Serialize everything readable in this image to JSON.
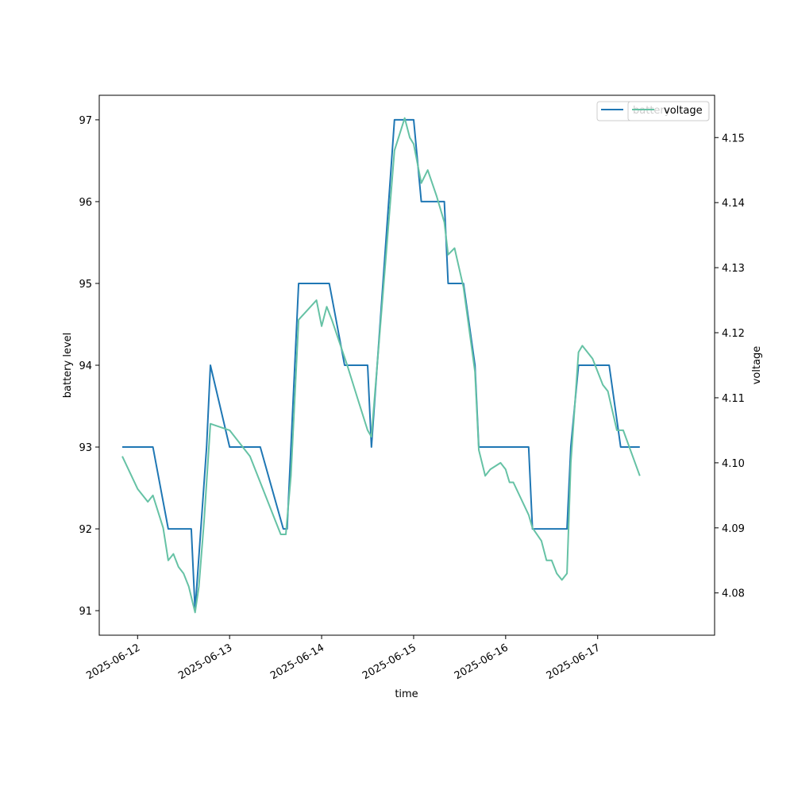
{
  "chart_data": {
    "type": "line",
    "xlabel": "time",
    "ylabel": "battery level",
    "y2label": "voltage",
    "x_tick_labels": [
      "2025-06-12",
      "2025-06-13",
      "2025-06-14",
      "2025-06-15",
      "2025-06-16",
      "2025-06-17"
    ],
    "y_tick_labels": [
      "91",
      "92",
      "93",
      "94",
      "95",
      "96",
      "97"
    ],
    "y2_tick_labels": [
      "4.08",
      "4.09",
      "4.10",
      "4.11",
      "4.12",
      "4.13",
      "4.14",
      "4.15"
    ],
    "xlim": [
      "2025-06-11 14:00",
      "2025-06-18 06:30"
    ],
    "ylim": [
      90.7,
      97.3
    ],
    "y2lim": [
      4.0735,
      4.1565
    ],
    "legend": [
      "battery",
      "voltage"
    ],
    "legend_position": "top-right",
    "grid": false,
    "series": [
      {
        "name": "battery",
        "axis": "left",
        "color": "#1f77b4",
        "points": [
          [
            "2025-06-11 20:00",
            93
          ],
          [
            "2025-06-12 04:00",
            93
          ],
          [
            "2025-06-12 08:00",
            92
          ],
          [
            "2025-06-12 14:00",
            92
          ],
          [
            "2025-06-12 15:00",
            91
          ],
          [
            "2025-06-12 18:00",
            93
          ],
          [
            "2025-06-12 19:00",
            94
          ],
          [
            "2025-06-13 00:00",
            93
          ],
          [
            "2025-06-13 08:00",
            93
          ],
          [
            "2025-06-13 14:00",
            92
          ],
          [
            "2025-06-13 15:00",
            92
          ],
          [
            "2025-06-13 18:00",
            95
          ],
          [
            "2025-06-14 02:00",
            95
          ],
          [
            "2025-06-14 06:00",
            94
          ],
          [
            "2025-06-14 12:00",
            94
          ],
          [
            "2025-06-14 13:00",
            93
          ],
          [
            "2025-06-14 19:00",
            97
          ],
          [
            "2025-06-15 00:00",
            97
          ],
          [
            "2025-06-15 02:00",
            96
          ],
          [
            "2025-06-15 08:00",
            96
          ],
          [
            "2025-06-15 09:00",
            95
          ],
          [
            "2025-06-15 13:00",
            95
          ],
          [
            "2025-06-15 16:00",
            94
          ],
          [
            "2025-06-15 17:00",
            93
          ],
          [
            "2025-06-16 06:00",
            93
          ],
          [
            "2025-06-16 07:00",
            92
          ],
          [
            "2025-06-16 16:00",
            92
          ],
          [
            "2025-06-16 17:00",
            93
          ],
          [
            "2025-06-16 19:00",
            94
          ],
          [
            "2025-06-17 03:00",
            94
          ],
          [
            "2025-06-17 06:00",
            93
          ],
          [
            "2025-06-17 11:00",
            93
          ]
        ]
      },
      {
        "name": "voltage",
        "axis": "right",
        "color": "#66c2a5",
        "points": [
          [
            "2025-06-11 20:00",
            4.101
          ],
          [
            "2025-06-12 00:00",
            4.096
          ],
          [
            "2025-06-12 02:40",
            4.094
          ],
          [
            "2025-06-12 04:00",
            4.095
          ],
          [
            "2025-06-12 06:40",
            4.09
          ],
          [
            "2025-06-12 08:00",
            4.085
          ],
          [
            "2025-06-12 09:20",
            4.086
          ],
          [
            "2025-06-12 10:40",
            4.084
          ],
          [
            "2025-06-12 12:00",
            4.083
          ],
          [
            "2025-06-12 13:20",
            4.081
          ],
          [
            "2025-06-12 15:00",
            4.077
          ],
          [
            "2025-06-12 16:00",
            4.081
          ],
          [
            "2025-06-12 17:20",
            4.091
          ],
          [
            "2025-06-12 19:00",
            4.106
          ],
          [
            "2025-06-13 00:00",
            4.105
          ],
          [
            "2025-06-13 05:20",
            4.101
          ],
          [
            "2025-06-13 08:00",
            4.097
          ],
          [
            "2025-06-13 12:00",
            4.091
          ],
          [
            "2025-06-13 13:20",
            4.089
          ],
          [
            "2025-06-13 14:40",
            4.089
          ],
          [
            "2025-06-13 16:00",
            4.098
          ],
          [
            "2025-06-13 18:00",
            4.122
          ],
          [
            "2025-06-13 22:40",
            4.125
          ],
          [
            "2025-06-14 00:00",
            4.121
          ],
          [
            "2025-06-14 01:20",
            4.124
          ],
          [
            "2025-06-14 02:40",
            4.122
          ],
          [
            "2025-06-14 06:40",
            4.115
          ],
          [
            "2025-06-14 09:20",
            4.11
          ],
          [
            "2025-06-14 12:00",
            4.105
          ],
          [
            "2025-06-14 13:00",
            4.104
          ],
          [
            "2025-06-14 19:00",
            4.148
          ],
          [
            "2025-06-14 21:40",
            4.153
          ],
          [
            "2025-06-14 23:00",
            4.15
          ],
          [
            "2025-06-15 00:00",
            4.149
          ],
          [
            "2025-06-15 02:00",
            4.143
          ],
          [
            "2025-06-15 03:40",
            4.145
          ],
          [
            "2025-06-15 06:00",
            4.141
          ],
          [
            "2025-06-15 08:00",
            4.137
          ],
          [
            "2025-06-15 09:00",
            4.132
          ],
          [
            "2025-06-15 10:40",
            4.133
          ],
          [
            "2025-06-15 13:00",
            4.127
          ],
          [
            "2025-06-15 16:00",
            4.114
          ],
          [
            "2025-06-15 17:00",
            4.102
          ],
          [
            "2025-06-15 18:40",
            4.098
          ],
          [
            "2025-06-15 20:00",
            4.099
          ],
          [
            "2025-06-15 22:40",
            4.1
          ],
          [
            "2025-06-16 00:00",
            4.099
          ],
          [
            "2025-06-16 01:00",
            4.097
          ],
          [
            "2025-06-16 02:00",
            4.097
          ],
          [
            "2025-06-16 06:00",
            4.092
          ],
          [
            "2025-06-16 07:00",
            4.09
          ],
          [
            "2025-06-16 09:20",
            4.088
          ],
          [
            "2025-06-16 10:40",
            4.085
          ],
          [
            "2025-06-16 12:00",
            4.085
          ],
          [
            "2025-06-16 13:20",
            4.083
          ],
          [
            "2025-06-16 14:40",
            4.082
          ],
          [
            "2025-06-16 16:00",
            4.083
          ],
          [
            "2025-06-16 17:00",
            4.1
          ],
          [
            "2025-06-16 19:00",
            4.117
          ],
          [
            "2025-06-16 20:00",
            4.118
          ],
          [
            "2025-06-16 22:40",
            4.116
          ],
          [
            "2025-06-17 01:20",
            4.112
          ],
          [
            "2025-06-17 02:40",
            4.111
          ],
          [
            "2025-06-17 05:00",
            4.105
          ],
          [
            "2025-06-17 06:40",
            4.105
          ],
          [
            "2025-06-17 11:00",
            4.098
          ]
        ]
      }
    ]
  }
}
